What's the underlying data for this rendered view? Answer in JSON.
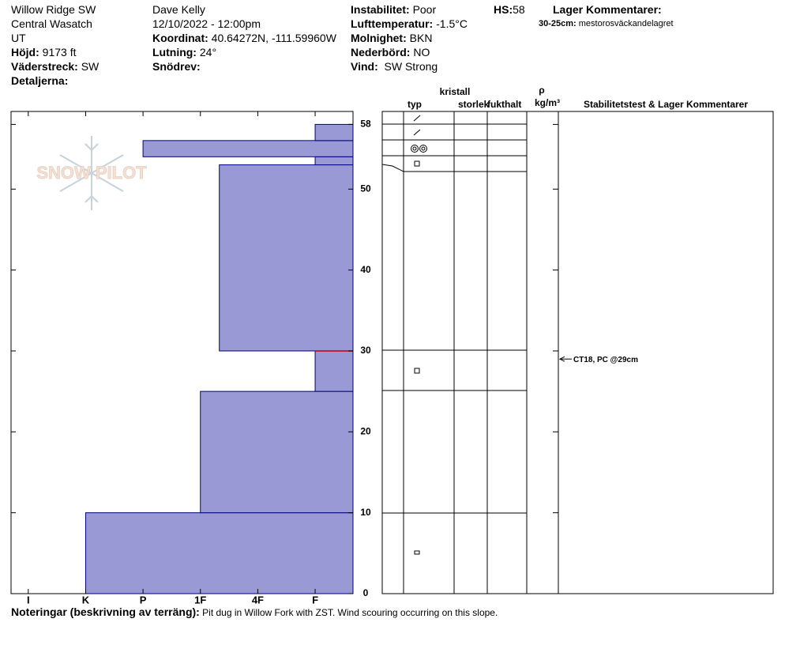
{
  "header": {
    "site": "Willow Ridge SW",
    "range": "Central Wasatch",
    "state": "UT",
    "elevation": {
      "label": "Höjd:",
      "value": "9173 ft"
    },
    "aspect": {
      "label": "Väderstreck:",
      "value": "SW"
    },
    "details": {
      "label": "Detaljerna:"
    },
    "observer": "Dave Kelly",
    "datetime": "12/10/2022 - 12:00pm",
    "coordinates": {
      "label": "Koordinat:",
      "value": "40.64272N, -111.59960W"
    },
    "slope": {
      "label": "Lutning:",
      "value": "24°"
    },
    "wind_loading": {
      "label": "Snödrev:"
    },
    "instability": {
      "label": "Instabilitet:",
      "value": "Poor"
    },
    "air_temp": {
      "label": "Lufttemperatur:",
      "value": "-1.5°C"
    },
    "sky": {
      "label": "Molnighet:",
      "value": "BKN"
    },
    "precip": {
      "label": "Nederbörd:",
      "value": "NO"
    },
    "wind": {
      "label": "Vind:",
      "value": "SW Strong"
    },
    "hs": {
      "label": "HS:",
      "value": "58"
    },
    "layer_comments_title": "Lager Kommentarer:",
    "layer_comment": {
      "range": "30-25cm:",
      "text": "mestorosväckandelagret"
    }
  },
  "columns": {
    "type": "typ",
    "crystal": "kristall",
    "size": "storlek",
    "moisture": "fukthalt",
    "rho": "ρ",
    "density_unit": "kg/m³",
    "stability": "Stabilitetstest & Lager Kommentarer"
  },
  "logo": "SNOW PILOT",
  "chart_data": {
    "type": "snow-profile",
    "ylim": [
      0,
      59.6
    ],
    "yticks": [
      0,
      10,
      20,
      30,
      40,
      50,
      58
    ],
    "xlim": [
      0.7,
      6.66
    ],
    "xticks": [
      {
        "value": 1,
        "label": "I"
      },
      {
        "value": 2,
        "label": "K"
      },
      {
        "value": 3,
        "label": "P"
      },
      {
        "value": 4,
        "label": "1F"
      },
      {
        "value": 5,
        "label": "4F"
      },
      {
        "value": 6,
        "label": "F"
      }
    ],
    "color": "#9999d6",
    "edge_color": "#000080",
    "layers": [
      {
        "bottom": 0,
        "top": 10,
        "hardness": 2
      },
      {
        "bottom": 10,
        "top": 25,
        "hardness": 4
      },
      {
        "bottom": 25,
        "top": 30,
        "hardness": 6
      },
      {
        "bottom": 30,
        "top": 53,
        "hardness": 4.33
      },
      {
        "bottom": 53,
        "top": 54,
        "hardness": 6
      },
      {
        "bottom": 54,
        "top": 56,
        "hardness": 3
      },
      {
        "bottom": 56,
        "top": 58,
        "hardness": 6
      }
    ],
    "critical_boundary": 30,
    "critical_color": "#cc0000",
    "annotations": [
      {
        "text": "CT18, PC @29cm",
        "height": 29
      }
    ]
  },
  "notes": {
    "label": "Noteringar (beskrivning av terräng):",
    "text": "Pit dug in Willow Fork with ZST. Wind scouring occurring on this slope."
  }
}
